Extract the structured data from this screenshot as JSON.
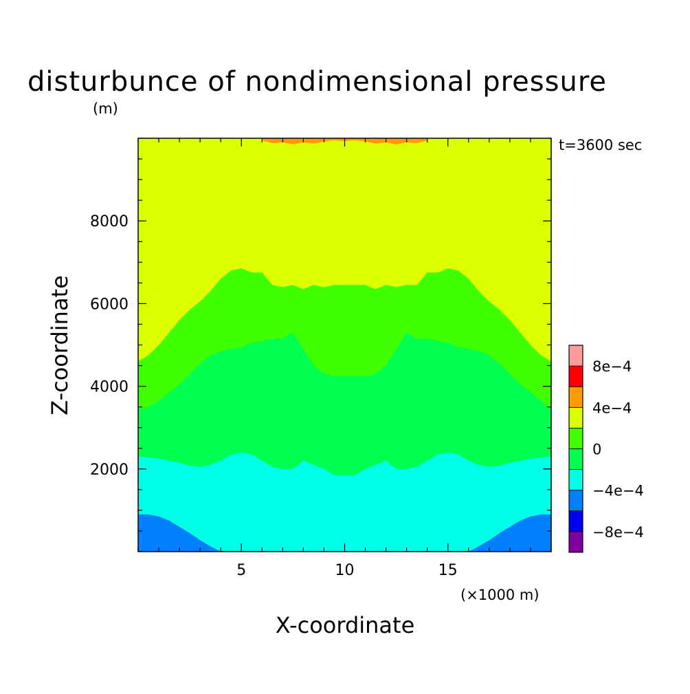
{
  "chart_data": {
    "type": "heatmap",
    "subtype": "filled-contour",
    "title": "disturbunce of nondimensional pressure",
    "time_label": "t=3600 sec",
    "xlabel": "X-coordinate",
    "x_units": "(×1000 m)",
    "ylabel": "Z-coordinate",
    "y_units": "(m)",
    "xlim": [
      0,
      20
    ],
    "ylim": [
      0,
      10000
    ],
    "x_ticks": [
      5,
      10,
      15
    ],
    "x_tick_labels": [
      "5",
      "10",
      "15"
    ],
    "y_ticks": [
      2000,
      4000,
      6000,
      8000
    ],
    "y_tick_labels": [
      "2000",
      "4000",
      "6000",
      "8000"
    ],
    "colorbar": {
      "levels": [
        -0.001,
        -0.0008,
        -0.0006,
        -0.0004,
        -0.0002,
        0,
        0.0002,
        0.0004,
        0.0006,
        0.0008,
        0.001
      ],
      "colors": [
        "#8000a0",
        "#0000f0",
        "#0080ff",
        "#00ffe6",
        "#00ff50",
        "#40ff00",
        "#dcff00",
        "#ff9a00",
        "#ff0000",
        "#ff9a9a"
      ],
      "tick_labels": [
        {
          "value": 0.0008,
          "label": "8e−4"
        },
        {
          "value": 0.0004,
          "label": "4e−4"
        },
        {
          "value": 0,
          "label": "0"
        },
        {
          "value": -0.0004,
          "label": "−4e−4"
        },
        {
          "value": -0.0008,
          "label": "−8e−4"
        }
      ]
    },
    "regions": [
      {
        "name": "level-0.0002-0.0004",
        "color": "#dcff00",
        "boundary": [
          [
            0,
            0
          ],
          [
            20,
            0
          ],
          [
            20,
            10000
          ],
          [
            0,
            10000
          ]
        ]
      },
      {
        "name": "level-0-0.0002",
        "color": "#40ff00",
        "boundary": [
          [
            0,
            0
          ],
          [
            0,
            4600
          ],
          [
            0.5,
            4750
          ],
          [
            1.0,
            5000
          ],
          [
            1.5,
            5300
          ],
          [
            2.0,
            5600
          ],
          [
            2.5,
            5850
          ],
          [
            3.0,
            6050
          ],
          [
            3.5,
            6300
          ],
          [
            4.0,
            6600
          ],
          [
            4.5,
            6800
          ],
          [
            5.0,
            6850
          ],
          [
            5.5,
            6750
          ],
          [
            6.0,
            6750
          ],
          [
            6.5,
            6450
          ],
          [
            7.0,
            6400
          ],
          [
            7.5,
            6450
          ],
          [
            8.0,
            6350
          ],
          [
            8.5,
            6450
          ],
          [
            9.0,
            6400
          ],
          [
            9.5,
            6450
          ],
          [
            10.0,
            6450
          ],
          [
            10.5,
            6450
          ],
          [
            11.0,
            6450
          ],
          [
            11.5,
            6350
          ],
          [
            12.0,
            6450
          ],
          [
            12.5,
            6400
          ],
          [
            13.0,
            6450
          ],
          [
            13.5,
            6450
          ],
          [
            14.0,
            6750
          ],
          [
            14.5,
            6750
          ],
          [
            15.0,
            6850
          ],
          [
            15.5,
            6800
          ],
          [
            16.0,
            6600
          ],
          [
            16.5,
            6300
          ],
          [
            17.0,
            6050
          ],
          [
            17.5,
            5850
          ],
          [
            18.0,
            5600
          ],
          [
            18.5,
            5300
          ],
          [
            19.0,
            5000
          ],
          [
            19.5,
            4750
          ],
          [
            20,
            4600
          ],
          [
            20,
            0
          ]
        ]
      },
      {
        "name": "level--0.0002-0",
        "color": "#00ff50",
        "boundary": [
          [
            0,
            0
          ],
          [
            0,
            3450
          ],
          [
            0.5,
            3500
          ],
          [
            1.0,
            3650
          ],
          [
            1.5,
            3850
          ],
          [
            2.0,
            4050
          ],
          [
            2.5,
            4300
          ],
          [
            3.0,
            4550
          ],
          [
            3.5,
            4750
          ],
          [
            4.0,
            4850
          ],
          [
            4.5,
            4900
          ],
          [
            5.0,
            4950
          ],
          [
            5.5,
            5050
          ],
          [
            6.0,
            5100
          ],
          [
            6.5,
            5150
          ],
          [
            7.0,
            5150
          ],
          [
            7.5,
            5300
          ],
          [
            8.0,
            4900
          ],
          [
            8.5,
            4500
          ],
          [
            9.0,
            4300
          ],
          [
            9.5,
            4250
          ],
          [
            10.0,
            4250
          ],
          [
            10.5,
            4250
          ],
          [
            11.0,
            4250
          ],
          [
            11.5,
            4300
          ],
          [
            12.0,
            4500
          ],
          [
            12.5,
            4900
          ],
          [
            13.0,
            5300
          ],
          [
            13.5,
            5150
          ],
          [
            14.0,
            5150
          ],
          [
            14.5,
            5100
          ],
          [
            15.0,
            5050
          ],
          [
            15.5,
            4950
          ],
          [
            16.0,
            4900
          ],
          [
            16.5,
            4850
          ],
          [
            17.0,
            4750
          ],
          [
            17.5,
            4550
          ],
          [
            18.0,
            4300
          ],
          [
            18.5,
            4050
          ],
          [
            19.0,
            3850
          ],
          [
            19.5,
            3650
          ],
          [
            20,
            3450
          ],
          [
            20,
            0
          ]
        ]
      },
      {
        "name": "level--0.0004--0.0002",
        "color": "#00ffe6",
        "boundary": [
          [
            0,
            0
          ],
          [
            0,
            2300
          ],
          [
            0.5,
            2280
          ],
          [
            1.0,
            2250
          ],
          [
            1.5,
            2200
          ],
          [
            2.0,
            2150
          ],
          [
            2.5,
            2080
          ],
          [
            3.0,
            2050
          ],
          [
            3.5,
            2100
          ],
          [
            4.0,
            2200
          ],
          [
            4.5,
            2350
          ],
          [
            5.0,
            2400
          ],
          [
            5.5,
            2350
          ],
          [
            6.0,
            2200
          ],
          [
            6.5,
            2050
          ],
          [
            7.0,
            2000
          ],
          [
            7.5,
            2000
          ],
          [
            8.0,
            2200
          ],
          [
            8.5,
            2100
          ],
          [
            9.0,
            2000
          ],
          [
            9.5,
            1850
          ],
          [
            10.0,
            1850
          ],
          [
            10.5,
            1850
          ],
          [
            11.0,
            2000
          ],
          [
            11.5,
            2100
          ],
          [
            12.0,
            2200
          ],
          [
            12.5,
            2000
          ],
          [
            13.0,
            2000
          ],
          [
            13.5,
            2050
          ],
          [
            14.0,
            2200
          ],
          [
            14.5,
            2350
          ],
          [
            15.0,
            2400
          ],
          [
            15.5,
            2350
          ],
          [
            16.0,
            2200
          ],
          [
            16.5,
            2100
          ],
          [
            17.0,
            2050
          ],
          [
            17.5,
            2080
          ],
          [
            18.0,
            2150
          ],
          [
            18.5,
            2200
          ],
          [
            19.0,
            2250
          ],
          [
            19.5,
            2280
          ],
          [
            20,
            2300
          ],
          [
            20,
            0
          ]
        ]
      },
      {
        "name": "level--0.0006--0.0004-left",
        "color": "#0080ff",
        "boundary": [
          [
            0,
            0
          ],
          [
            0,
            900
          ],
          [
            0.5,
            900
          ],
          [
            1.0,
            850
          ],
          [
            1.5,
            750
          ],
          [
            2.0,
            600
          ],
          [
            2.5,
            450
          ],
          [
            3.0,
            280
          ],
          [
            3.5,
            130
          ],
          [
            4.0,
            0
          ]
        ]
      },
      {
        "name": "level--0.0006--0.0004-right",
        "color": "#0080ff",
        "boundary": [
          [
            20,
            0
          ],
          [
            20,
            900
          ],
          [
            19.5,
            900
          ],
          [
            19.0,
            850
          ],
          [
            18.5,
            750
          ],
          [
            18.0,
            600
          ],
          [
            17.5,
            450
          ],
          [
            17.0,
            280
          ],
          [
            16.5,
            130
          ],
          [
            16.0,
            0
          ]
        ]
      },
      {
        "name": "level-0.0004-0.0006-top",
        "color": "#ff9a00",
        "boundary": [
          [
            6.0,
            10000
          ],
          [
            6.0,
            9950
          ],
          [
            6.5,
            9880
          ],
          [
            7.0,
            9900
          ],
          [
            7.5,
            9850
          ],
          [
            8.0,
            9900
          ],
          [
            8.5,
            9870
          ],
          [
            9.0,
            9920
          ],
          [
            9.5,
            9950
          ],
          [
            10.0,
            9930
          ],
          [
            10.5,
            9950
          ],
          [
            11.0,
            9920
          ],
          [
            11.5,
            9870
          ],
          [
            12.0,
            9900
          ],
          [
            12.5,
            9850
          ],
          [
            13.0,
            9900
          ],
          [
            13.5,
            9880
          ],
          [
            14.0,
            9950
          ],
          [
            14.0,
            10000
          ]
        ]
      }
    ]
  }
}
